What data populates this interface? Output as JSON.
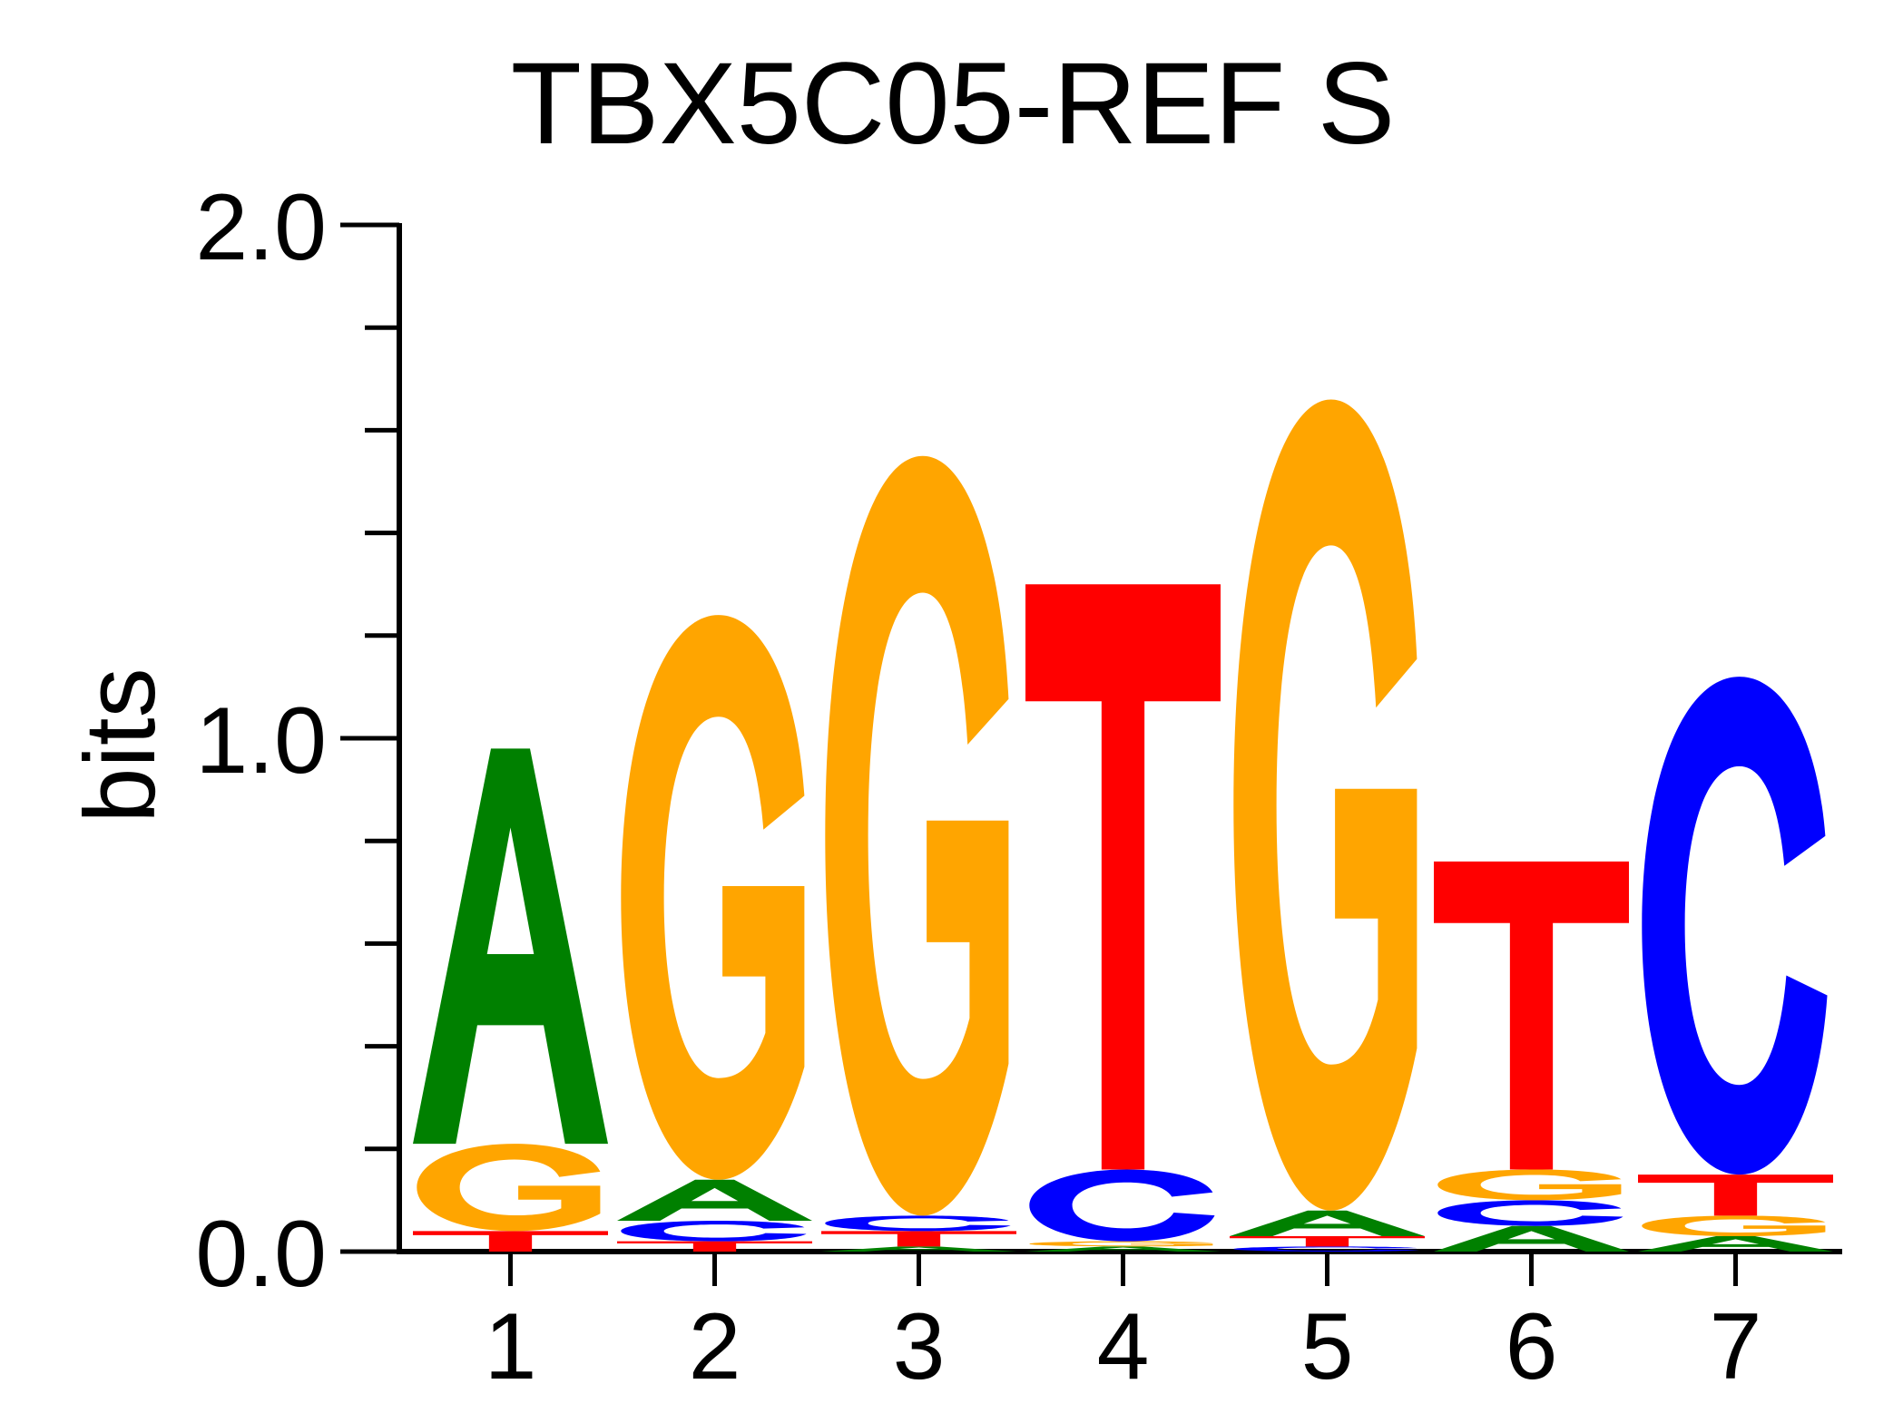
{
  "chart_data": {
    "type": "sequence-logo",
    "title": "TBX5C05-REF S",
    "xlabel": "",
    "ylabel": "bits",
    "ylim": [
      0,
      2
    ],
    "y_ticks": [
      "0.0",
      "1.0",
      "2.0"
    ],
    "y_tick_values": [
      0,
      1,
      2
    ],
    "y_minor_step": 0.2,
    "x_ticks": [
      "1",
      "2",
      "3",
      "4",
      "5",
      "6",
      "7"
    ],
    "grid": false,
    "legend": "none",
    "colors": {
      "A": "#008000",
      "C": "#0000ff",
      "G": "#ffa500",
      "T": "#ff0000"
    },
    "positions": [
      {
        "position": "1",
        "stack": [
          {
            "base": "T",
            "bits": 0.04
          },
          {
            "base": "G",
            "bits": 0.17
          },
          {
            "base": "A",
            "bits": 0.77
          }
        ]
      },
      {
        "position": "2",
        "stack": [
          {
            "base": "T",
            "bits": 0.02
          },
          {
            "base": "C",
            "bits": 0.04
          },
          {
            "base": "A",
            "bits": 0.08
          },
          {
            "base": "G",
            "bits": 1.1
          }
        ]
      },
      {
        "position": "3",
        "stack": [
          {
            "base": "A",
            "bits": 0.01
          },
          {
            "base": "T",
            "bits": 0.03
          },
          {
            "base": "C",
            "bits": 0.03
          },
          {
            "base": "G",
            "bits": 1.48
          }
        ]
      },
      {
        "position": "4",
        "stack": [
          {
            "base": "A",
            "bits": 0.01
          },
          {
            "base": "G",
            "bits": 0.01
          },
          {
            "base": "C",
            "bits": 0.14
          },
          {
            "base": "T",
            "bits": 1.14
          }
        ]
      },
      {
        "position": "5",
        "stack": [
          {
            "base": "C",
            "bits": 0.01
          },
          {
            "base": "T",
            "bits": 0.02
          },
          {
            "base": "A",
            "bits": 0.05
          },
          {
            "base": "G",
            "bits": 1.58
          }
        ]
      },
      {
        "position": "6",
        "stack": [
          {
            "base": "A",
            "bits": 0.05
          },
          {
            "base": "C",
            "bits": 0.05
          },
          {
            "base": "G",
            "bits": 0.06
          },
          {
            "base": "T",
            "bits": 0.6
          }
        ]
      },
      {
        "position": "7",
        "stack": [
          {
            "base": "A",
            "bits": 0.03
          },
          {
            "base": "G",
            "bits": 0.04
          },
          {
            "base": "T",
            "bits": 0.08
          },
          {
            "base": "C",
            "bits": 0.97
          }
        ]
      }
    ]
  }
}
